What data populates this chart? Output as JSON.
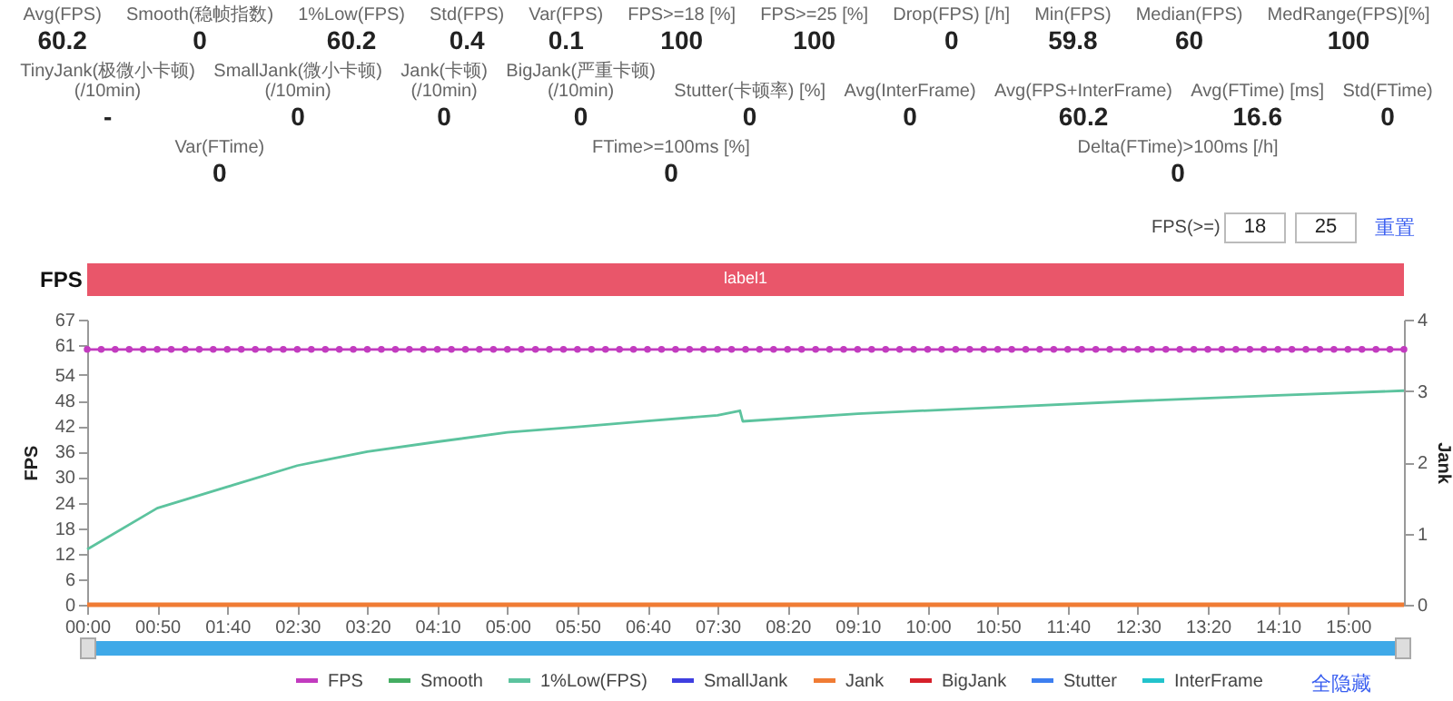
{
  "chart_data": [
    {
      "type": "other",
      "annotations": [
        "Avg(FPS)",
        "60.2",
        "Smooth(稳帧指数)",
        "0",
        "1%Low(FPS)",
        "60.2",
        "Std(FPS)",
        "0.4",
        "Var(FPS)",
        "0.1",
        "FPS>=18 [%]",
        "100",
        "FPS>=25 [%]",
        "100",
        "Drop(FPS) [/h]",
        "0",
        "Min(FPS)",
        "59.8",
        "Median(FPS)",
        "60",
        "MedRange(FPS)[%]",
        "100",
        "TinyJank(极微小卡顿) (/10min)",
        "-",
        "SmallJank(微小卡顿) (/10min)",
        "0",
        "Jank(卡顿) (/10min)",
        "0",
        "BigJank(严重卡顿) (/10min)",
        "0",
        "Stutter(卡顿率) [%]",
        "0",
        "Avg(InterFrame)",
        "0",
        "Avg(FPS+InterFrame)",
        "60.2",
        "Avg(FTime) [ms]",
        "16.6",
        "Std(FTime)",
        "0",
        "Var(FTime)",
        "0",
        "FTime>=100ms [%]",
        "0",
        "Delta(FTime)>100ms [/h]",
        "0"
      ]
    },
    {
      "type": "line",
      "title": "FPS",
      "ylabel": "FPS",
      "y2label": "Jank",
      "legend": "bottom",
      "x": [
        0,
        10,
        20,
        30,
        40,
        50,
        60,
        70,
        80,
        90,
        100,
        110,
        120,
        130,
        140,
        150,
        160,
        170,
        180,
        190,
        200,
        210,
        220,
        230,
        240,
        250,
        260,
        270,
        280,
        290,
        300,
        310,
        320,
        330,
        340,
        350,
        360,
        370,
        380,
        390,
        400,
        410,
        420,
        430,
        440,
        450,
        460,
        470,
        480,
        490,
        500,
        510,
        520,
        530,
        540,
        550,
        560,
        570,
        580,
        590,
        600,
        610,
        620,
        630,
        640,
        650,
        660,
        670,
        680,
        690,
        700,
        710,
        720,
        730,
        740,
        750,
        760,
        770,
        780,
        790,
        800,
        810,
        820,
        830,
        840,
        850,
        860,
        870,
        880,
        890,
        900,
        910,
        920,
        930,
        940
      ],
      "xlim": [
        0,
        940
      ],
      "xticks": [
        {
          "value": 0,
          "label": "00:00"
        },
        {
          "value": 50,
          "label": "00:50"
        },
        {
          "value": 100,
          "label": "01:40"
        },
        {
          "value": 150,
          "label": "02:30"
        },
        {
          "value": 200,
          "label": "03:20"
        },
        {
          "value": 250,
          "label": "04:10"
        },
        {
          "value": 300,
          "label": "05:00"
        },
        {
          "value": 350,
          "label": "05:50"
        },
        {
          "value": 400,
          "label": "06:40"
        },
        {
          "value": 450,
          "label": "07:30"
        },
        {
          "value": 500,
          "label": "08:20"
        },
        {
          "value": 550,
          "label": "09:10"
        },
        {
          "value": 600,
          "label": "10:00"
        },
        {
          "value": 650,
          "label": "10:50"
        },
        {
          "value": 700,
          "label": "11:40"
        },
        {
          "value": 750,
          "label": "12:30"
        },
        {
          "value": 800,
          "label": "13:20"
        },
        {
          "value": 850,
          "label": "14:10"
        },
        {
          "value": 900,
          "label": "15:00"
        }
      ],
      "ylim": [
        0,
        67
      ],
      "yticks": [
        0,
        6,
        12,
        18,
        24,
        30,
        36,
        42,
        48,
        54,
        61,
        67
      ],
      "y2lim": [
        0,
        4
      ],
      "y2ticks": [
        0,
        1,
        2,
        3,
        4
      ],
      "annotations": [
        "FPS(>=)",
        "18",
        "25",
        "重置",
        "全隐藏",
        "label1"
      ],
      "series": [
        {
          "name": "FPS",
          "color": "#c23bbf",
          "marker": "circle",
          "values": [
            60,
            60,
            60,
            60,
            60,
            60,
            60,
            60,
            60,
            60,
            60,
            60,
            60,
            60,
            60,
            60,
            60,
            60,
            60,
            60,
            60,
            60,
            60,
            60,
            60,
            60,
            60,
            60,
            60,
            60,
            60,
            60,
            60,
            60,
            60,
            60,
            60,
            60,
            60,
            60,
            60,
            60,
            60,
            60,
            60,
            60,
            60,
            60,
            60,
            60,
            60,
            60,
            60,
            60,
            60,
            60,
            60,
            60,
            60,
            60,
            60,
            60,
            60,
            60,
            60,
            60,
            60,
            60,
            60,
            60,
            60,
            60,
            60,
            60,
            60,
            60,
            60,
            60,
            60,
            60,
            60,
            60,
            60,
            60,
            60,
            60,
            60,
            60,
            60,
            60,
            60,
            60,
            60,
            60,
            60
          ]
        },
        {
          "name": "Smooth",
          "color": "#44ad62",
          "values": [
            null,
            null,
            null,
            null,
            null,
            null,
            null,
            null,
            null,
            null,
            null,
            null,
            null,
            null,
            null,
            null,
            null,
            null,
            null,
            null,
            null,
            null,
            null,
            null,
            null,
            null,
            null,
            null,
            null,
            null,
            null,
            null,
            null,
            null,
            null,
            null,
            null,
            null,
            null,
            null,
            null,
            null,
            null,
            null,
            null,
            null,
            null,
            null,
            null,
            null,
            null,
            null,
            null,
            null,
            null,
            null,
            null,
            null,
            null,
            null,
            null,
            null,
            null,
            null,
            null,
            null,
            null,
            null,
            null,
            null,
            null,
            null,
            null,
            null,
            null,
            null,
            null,
            null,
            null,
            null,
            null,
            null,
            null,
            null,
            null,
            null,
            null,
            null,
            null,
            null,
            null,
            null,
            null,
            null,
            null
          ]
        },
        {
          "name": "1%Low(FPS)",
          "color": "#5cc39e",
          "x": [
            0,
            50,
            100,
            150,
            200,
            250,
            300,
            350,
            400,
            450,
            466,
            468,
            550,
            650,
            750,
            850,
            940
          ],
          "values": [
            13,
            22.7,
            27.7,
            32.7,
            36,
            38.3,
            40.5,
            41.8,
            43.2,
            44.5,
            45.6,
            43.1,
            44.9,
            46.4,
            47.9,
            49.2,
            50.3
          ]
        },
        {
          "name": "SmallJank",
          "color": "#3f3fe0",
          "values": [
            null,
            null,
            null,
            null,
            null,
            null,
            null,
            null,
            null,
            null,
            null,
            null,
            null,
            null,
            null,
            null,
            null,
            null,
            null,
            null,
            null,
            null,
            null,
            null,
            null,
            null,
            null,
            null,
            null,
            null,
            null,
            null,
            null,
            null,
            null,
            null,
            null,
            null,
            null,
            null,
            null,
            null,
            null,
            null,
            null,
            null,
            null,
            null,
            null,
            null,
            null,
            null,
            null,
            null,
            null,
            null,
            null,
            null,
            null,
            null,
            null,
            null,
            null,
            null,
            null,
            null,
            null,
            null,
            null,
            null,
            null,
            null,
            null,
            null,
            null,
            null,
            null,
            null,
            null,
            null,
            null,
            null,
            null,
            null,
            null,
            null,
            null,
            null,
            null,
            null,
            null,
            null,
            null,
            null,
            null
          ]
        },
        {
          "name": "Jank",
          "color": "#f07c34",
          "axis": "y2",
          "values": [
            0,
            0,
            0,
            0,
            0,
            0,
            0,
            0,
            0,
            0,
            0,
            0,
            0,
            0,
            0,
            0,
            0,
            0,
            0,
            0,
            0,
            0,
            0,
            0,
            0,
            0,
            0,
            0,
            0,
            0,
            0,
            0,
            0,
            0,
            0,
            0,
            0,
            0,
            0,
            0,
            0,
            0,
            0,
            0,
            0,
            0,
            0,
            0,
            0,
            0,
            0,
            0,
            0,
            0,
            0,
            0,
            0,
            0,
            0,
            0,
            0,
            0,
            0,
            0,
            0,
            0,
            0,
            0,
            0,
            0,
            0,
            0,
            0,
            0,
            0,
            0,
            0,
            0,
            0,
            0,
            0,
            0,
            0,
            0,
            0,
            0,
            0,
            0,
            0,
            0,
            0,
            0,
            0,
            0,
            0
          ]
        },
        {
          "name": "BigJank",
          "color": "#d6202a",
          "values": [
            null,
            null,
            null,
            null,
            null,
            null,
            null,
            null,
            null,
            null,
            null,
            null,
            null,
            null,
            null,
            null,
            null,
            null,
            null,
            null,
            null,
            null,
            null,
            null,
            null,
            null,
            null,
            null,
            null,
            null,
            null,
            null,
            null,
            null,
            null,
            null,
            null,
            null,
            null,
            null,
            null,
            null,
            null,
            null,
            null,
            null,
            null,
            null,
            null,
            null,
            null,
            null,
            null,
            null,
            null,
            null,
            null,
            null,
            null,
            null,
            null,
            null,
            null,
            null,
            null,
            null,
            null,
            null,
            null,
            null,
            null,
            null,
            null,
            null,
            null,
            null,
            null,
            null,
            null,
            null,
            null,
            null,
            null,
            null,
            null,
            null,
            null,
            null,
            null,
            null,
            null,
            null,
            null,
            null,
            null
          ]
        },
        {
          "name": "Stutter",
          "color": "#3d7ff0",
          "values": [
            null,
            null,
            null,
            null,
            null,
            null,
            null,
            null,
            null,
            null,
            null,
            null,
            null,
            null,
            null,
            null,
            null,
            null,
            null,
            null,
            null,
            null,
            null,
            null,
            null,
            null,
            null,
            null,
            null,
            null,
            null,
            null,
            null,
            null,
            null,
            null,
            null,
            null,
            null,
            null,
            null,
            null,
            null,
            null,
            null,
            null,
            null,
            null,
            null,
            null,
            null,
            null,
            null,
            null,
            null,
            null,
            null,
            null,
            null,
            null,
            null,
            null,
            null,
            null,
            null,
            null,
            null,
            null,
            null,
            null,
            null,
            null,
            null,
            null,
            null,
            null,
            null,
            null,
            null,
            null,
            null,
            null,
            null,
            null,
            null,
            null,
            null,
            null,
            null,
            null,
            null,
            null,
            null,
            null,
            null
          ]
        },
        {
          "name": "InterFrame",
          "color": "#22c3cc",
          "values": [
            null,
            null,
            null,
            null,
            null,
            null,
            null,
            null,
            null,
            null,
            null,
            null,
            null,
            null,
            null,
            null,
            null,
            null,
            null,
            null,
            null,
            null,
            null,
            null,
            null,
            null,
            null,
            null,
            null,
            null,
            null,
            null,
            null,
            null,
            null,
            null,
            null,
            null,
            null,
            null,
            null,
            null,
            null,
            null,
            null,
            null,
            null,
            null,
            null,
            null,
            null,
            null,
            null,
            null,
            null,
            null,
            null,
            null,
            null,
            null,
            null,
            null,
            null,
            null,
            null,
            null,
            null,
            null,
            null,
            null,
            null,
            null,
            null,
            null,
            null,
            null,
            null,
            null,
            null,
            null,
            null,
            null,
            null,
            null,
            null,
            null,
            null,
            null,
            null,
            null,
            null,
            null,
            null,
            null,
            null
          ]
        }
      ]
    }
  ]
}
